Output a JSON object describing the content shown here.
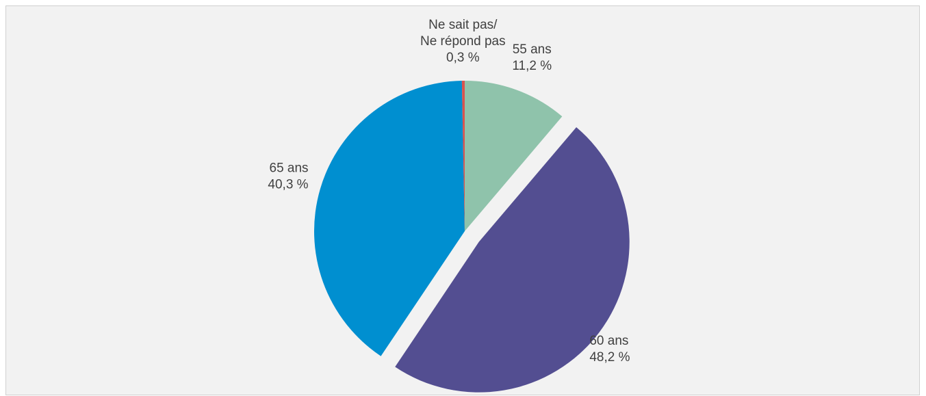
{
  "chart_data": {
    "type": "pie",
    "title": "",
    "categories": [
      "55 ans",
      "60 ans",
      "65 ans",
      "Ne sait pas/ Ne répond pas"
    ],
    "values": [
      11.2,
      48.2,
      40.3,
      0.3
    ],
    "value_labels": [
      "11,2 %",
      "48,2 %",
      "40,3 %",
      "0,3 %"
    ],
    "label_lines": [
      [
        "55 ans",
        "11,2 %"
      ],
      [
        "60 ans",
        "48,2 %"
      ],
      [
        "65 ans",
        "40,3 %"
      ],
      [
        "Ne sait pas/",
        "Ne répond pas",
        "0,3 %"
      ]
    ],
    "exploded": [
      false,
      true,
      false,
      false
    ],
    "start_angle_deg": 0,
    "direction": "clockwise",
    "colors": [
      "#8fc3ab",
      "#534e91",
      "#008fd0",
      "#d9534f"
    ],
    "legend": "none",
    "background": "#f2f2f2"
  }
}
